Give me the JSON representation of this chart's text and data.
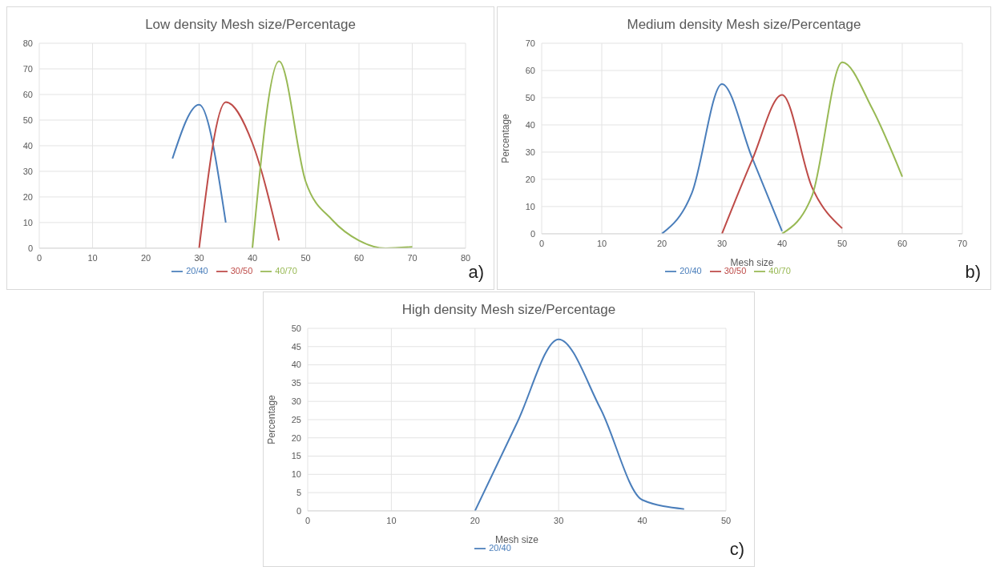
{
  "chart_data": [
    {
      "type": "line",
      "title": "Low density Mesh size/Percentage",
      "annotations": [
        "a)"
      ],
      "xlim": [
        0,
        80
      ],
      "xticks": [
        0,
        10,
        20,
        30,
        40,
        50,
        60,
        70,
        80
      ],
      "ylim": [
        0,
        80
      ],
      "yticks": [
        0,
        10,
        20,
        30,
        40,
        50,
        60,
        70,
        80
      ],
      "grid": true,
      "legend": "bottom",
      "marker": "none",
      "series": [
        {
          "name": "20/40",
          "color": "#4a7ebb",
          "x": [
            25,
            30,
            35
          ],
          "values": [
            35,
            56,
            10
          ]
        },
        {
          "name": "30/50",
          "color": "#be4b48",
          "x": [
            30,
            35,
            40,
            45
          ],
          "values": [
            0,
            57,
            41,
            3
          ]
        },
        {
          "name": "40/70",
          "color": "#98b954",
          "x": [
            40,
            45,
            50,
            55,
            60,
            65,
            70
          ],
          "values": [
            0,
            73,
            26,
            11,
            3,
            0,
            0.5
          ]
        }
      ]
    },
    {
      "type": "line",
      "title": "Medium density Mesh size/Percentage",
      "xlabel": "Mesh size",
      "ylabel": "Percentage",
      "annotations": [
        "b)"
      ],
      "xlim": [
        0,
        70
      ],
      "xticks": [
        0,
        10,
        20,
        30,
        40,
        50,
        60,
        70
      ],
      "ylim": [
        0,
        70
      ],
      "yticks": [
        0,
        10,
        20,
        30,
        40,
        50,
        60,
        70
      ],
      "grid": true,
      "legend": "bottom",
      "marker": "none",
      "series": [
        {
          "name": "20/40",
          "color": "#4a7ebb",
          "x": [
            20,
            25,
            30,
            35,
            40
          ],
          "values": [
            0,
            15,
            55,
            28,
            1
          ]
        },
        {
          "name": "30/50",
          "color": "#be4b48",
          "x": [
            30,
            35,
            40,
            45,
            50
          ],
          "values": [
            0,
            27,
            51,
            17,
            2
          ]
        },
        {
          "name": "40/70",
          "color": "#98b954",
          "x": [
            40,
            45,
            50,
            55,
            60
          ],
          "values": [
            0,
            14,
            63,
            46,
            21
          ]
        }
      ]
    },
    {
      "type": "line",
      "title": "High density Mesh size/Percentage",
      "xlabel": "Mesh size",
      "ylabel": "Percentage",
      "annotations": [
        "c)"
      ],
      "xlim": [
        0,
        50
      ],
      "xticks": [
        0,
        10,
        20,
        30,
        40,
        50
      ],
      "ylim": [
        0,
        50
      ],
      "yticks": [
        0,
        5,
        10,
        15,
        20,
        25,
        30,
        35,
        40,
        45,
        50
      ],
      "grid": true,
      "legend": "bottom",
      "marker": "none",
      "series": [
        {
          "name": "20/40",
          "color": "#4a7ebb",
          "x": [
            20,
            25,
            30,
            35,
            40,
            45
          ],
          "values": [
            0,
            24,
            47,
            28,
            3,
            0.5
          ]
        }
      ]
    }
  ]
}
